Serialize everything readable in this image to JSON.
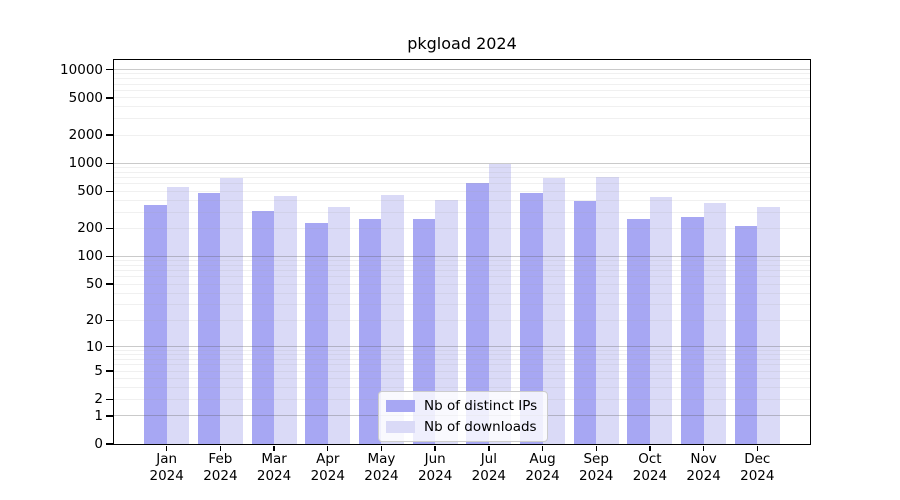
{
  "title": "pkgload 2024",
  "chart_data": {
    "type": "bar",
    "title": "pkgload 2024",
    "xlabel": "",
    "ylabel": "",
    "scale": "log1p",
    "grid": "major+minor horizontal",
    "legend_position": "lower center",
    "year_label": "2024",
    "categories": [
      "Jan",
      "Feb",
      "Mar",
      "Apr",
      "May",
      "Jun",
      "Jul",
      "Aug",
      "Sep",
      "Oct",
      "Nov",
      "Dec"
    ],
    "series": [
      {
        "name": "Nb of distinct IPs",
        "color": "#a7a7f3",
        "values": [
          355,
          480,
          305,
          230,
          250,
          255,
          615,
          480,
          390,
          250,
          265,
          215
        ]
      },
      {
        "name": "Nb of downloads",
        "color": "#dadaf7",
        "values": [
          560,
          690,
          450,
          340,
          460,
          400,
          970,
          700,
          710,
          435,
          375,
          340
        ]
      }
    ],
    "ytick_values": [
      0,
      1,
      2,
      5,
      10,
      20,
      50,
      100,
      200,
      500,
      1000,
      2000,
      5000,
      10000
    ],
    "ytick_labels": [
      "0",
      "1",
      "2",
      "5",
      "10",
      "20",
      "50",
      "100",
      "200",
      "500",
      "1000",
      "2000",
      "5000",
      "10000"
    ],
    "ylim": [
      0,
      13000
    ]
  },
  "colors": {
    "background": "#ffffff",
    "spine": "#000000",
    "major_grid": "#c3c3c3",
    "minor_grid": "#efefef",
    "legend_border": "#cccccc"
  }
}
